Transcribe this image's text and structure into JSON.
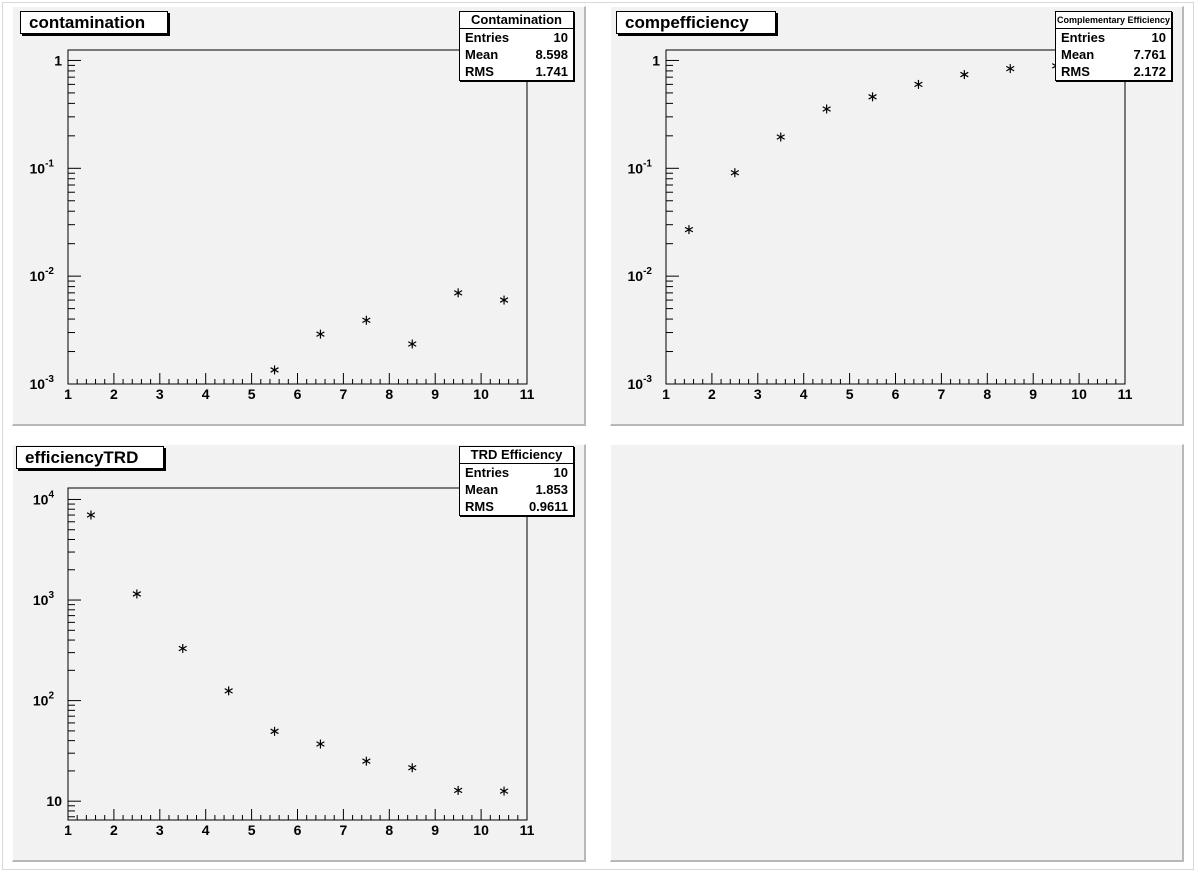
{
  "chart_data": [
    {
      "type": "scatter",
      "title": "contamination",
      "stats": {
        "name": "Contamination",
        "entries_label": "Entries",
        "entries": "10",
        "mean_label": "Mean",
        "mean": "8.598",
        "rms_label": "RMS",
        "rms": "1.741"
      },
      "x_ticks": [
        "1",
        "2",
        "3",
        "4",
        "5",
        "6",
        "7",
        "8",
        "9",
        "10",
        "11"
      ],
      "y_ticks": [
        {
          "base": "10",
          "exp": "-3",
          "value": 0.001
        },
        {
          "base": "10",
          "exp": "-2",
          "value": 0.01
        },
        {
          "base": "10",
          "exp": "-1",
          "value": 0.1
        },
        {
          "base": "1",
          "exp": "",
          "value": 1
        }
      ],
      "xlim": [
        1,
        11
      ],
      "ylim": [
        0.001,
        1.25
      ],
      "y_scale": "log",
      "marker": "asterisk",
      "x": [
        5.5,
        6.5,
        7.5,
        8.5,
        9.5,
        10.5
      ],
      "y": [
        0.00135,
        0.0029,
        0.0039,
        0.00235,
        0.007,
        0.006
      ]
    },
    {
      "type": "scatter",
      "title": "compefficiency",
      "stats": {
        "name": "Complementary Efficiency",
        "entries_label": "Entries",
        "entries": "10",
        "mean_label": "Mean",
        "mean": "7.761",
        "rms_label": "RMS",
        "rms": "2.172"
      },
      "x_ticks": [
        "1",
        "2",
        "3",
        "4",
        "5",
        "6",
        "7",
        "8",
        "9",
        "10",
        "11"
      ],
      "y_ticks": [
        {
          "base": "10",
          "exp": "-3",
          "value": 0.001
        },
        {
          "base": "10",
          "exp": "-2",
          "value": 0.01
        },
        {
          "base": "10",
          "exp": "-1",
          "value": 0.1
        },
        {
          "base": "1",
          "exp": "",
          "value": 1
        }
      ],
      "xlim": [
        1,
        11
      ],
      "ylim": [
        0.001,
        1.25
      ],
      "y_scale": "log",
      "marker": "asterisk",
      "x": [
        1.5,
        2.5,
        3.5,
        4.5,
        5.5,
        6.5,
        7.5,
        8.5,
        9.5
      ],
      "y": [
        0.027,
        0.091,
        0.195,
        0.355,
        0.46,
        0.6,
        0.74,
        0.84,
        0.89
      ]
    },
    {
      "type": "scatter",
      "title": "efficiencyTRD",
      "stats": {
        "name": "TRD Efficiency",
        "entries_label": "Entries",
        "entries": "10",
        "mean_label": "Mean",
        "mean": "1.853",
        "rms_label": "RMS",
        "rms": "0.9611"
      },
      "x_ticks": [
        "1",
        "2",
        "3",
        "4",
        "5",
        "6",
        "7",
        "8",
        "9",
        "10",
        "11"
      ],
      "y_ticks": [
        {
          "base": "10",
          "exp": "",
          "value": 10
        },
        {
          "base": "10",
          "exp": "2",
          "value": 100
        },
        {
          "base": "10",
          "exp": "3",
          "value": 1000
        },
        {
          "base": "10",
          "exp": "4",
          "value": 10000
        }
      ],
      "xlim": [
        1,
        11
      ],
      "ylim": [
        6.5,
        13000
      ],
      "y_scale": "log",
      "marker": "asterisk",
      "x": [
        1.5,
        2.5,
        3.5,
        4.5,
        5.5,
        6.5,
        7.5,
        8.5,
        9.5,
        10.5
      ],
      "y": [
        7000,
        1150,
        330,
        125,
        49.5,
        37,
        25,
        21.5,
        12.8,
        12.6
      ]
    }
  ]
}
